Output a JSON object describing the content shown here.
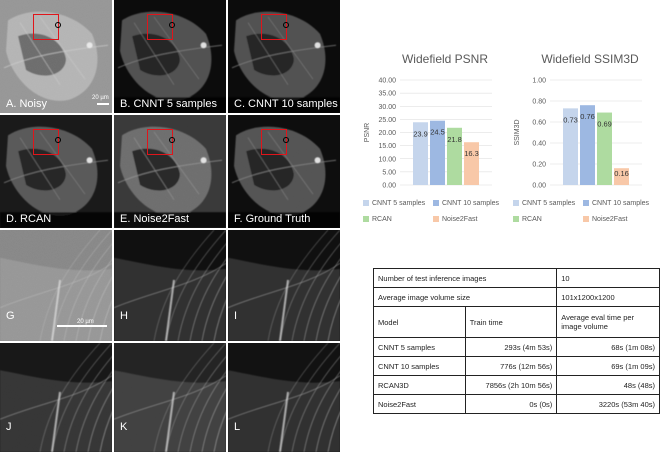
{
  "panels": [
    {
      "id": "A",
      "label": "A. Noisy",
      "style": "noisy",
      "has_box": true,
      "scalebar": "20 µm"
    },
    {
      "id": "B",
      "label": "B. CNNT 5 samples",
      "style": "clean",
      "has_box": true
    },
    {
      "id": "C",
      "label": "C. CNNT 10 samples",
      "style": "clean",
      "has_box": true
    },
    {
      "id": "D",
      "label": "D. RCAN",
      "style": "rcan",
      "has_box": true
    },
    {
      "id": "E",
      "label": "E. Noise2Fast",
      "style": "n2f",
      "has_box": true
    },
    {
      "id": "F",
      "label": "F. Ground Truth",
      "style": "gt",
      "has_box": true
    },
    {
      "id": "G",
      "label": "G",
      "style": "zoom-noisy",
      "scalebar": "20 µm"
    },
    {
      "id": "H",
      "label": "H",
      "style": "zoom-clean"
    },
    {
      "id": "I",
      "label": "I",
      "style": "zoom-clean"
    },
    {
      "id": "J",
      "label": "J",
      "style": "zoom-rcan"
    },
    {
      "id": "K",
      "label": "K",
      "style": "zoom-n2f"
    },
    {
      "id": "L",
      "label": "L",
      "style": "zoom-gt"
    }
  ],
  "colors": {
    "cnnt5": "#c5d5ec",
    "cnnt10": "#9db8e2",
    "rcan": "#aedba0",
    "n2f": "#f8c8a8",
    "red_box": "#e0151b"
  },
  "chart_data": [
    {
      "type": "bar",
      "title": "Widefield PSNR",
      "ylabel": "PSNR",
      "xlabel": "",
      "ylim": [
        0,
        40
      ],
      "yticks": [
        "0.00",
        "5.00",
        "10.00",
        "15.00",
        "20.00",
        "25.00",
        "30.00",
        "35.00",
        "40.00"
      ],
      "series": [
        {
          "name": "CNNT 5 samples",
          "values": [
            23.9
          ],
          "label": "23.9"
        },
        {
          "name": "CNNT 10 samples",
          "values": [
            24.5
          ],
          "label": "24.5"
        },
        {
          "name": "RCAN",
          "values": [
            21.8
          ],
          "label": "21.8"
        },
        {
          "name": "Noise2Fast",
          "values": [
            16.3
          ],
          "label": "16.3"
        }
      ],
      "grid": true,
      "legend": "bottom"
    },
    {
      "type": "bar",
      "title": "Widefield SSIM3D",
      "ylabel": "SSIM3D",
      "xlabel": "",
      "ylim": [
        0,
        1
      ],
      "yticks": [
        "0.00",
        "0.20",
        "0.40",
        "0.60",
        "0.80",
        "1.00"
      ],
      "series": [
        {
          "name": "CNNT 5 samples",
          "values": [
            0.73
          ],
          "label": "0.73"
        },
        {
          "name": "CNNT 10 samples",
          "values": [
            0.76
          ],
          "label": "0.76"
        },
        {
          "name": "RCAN",
          "values": [
            0.69
          ],
          "label": "0.69"
        },
        {
          "name": "Noise2Fast",
          "values": [
            0.16
          ],
          "label": "0.16"
        }
      ],
      "grid": true,
      "legend": "bottom"
    }
  ],
  "table": {
    "rows": [
      {
        "cells": [
          "Number of test inference images",
          "10"
        ],
        "spans": [
          2,
          1
        ]
      },
      {
        "cells": [
          "Average image volume size",
          "101x1200x1200"
        ],
        "spans": [
          2,
          1
        ]
      },
      {
        "cells": [
          "Model",
          "Train time",
          "Average eval time per image volume"
        ],
        "spans": [
          1,
          1,
          1
        ]
      },
      {
        "cells": [
          "CNNT 5 samples",
          "293s (4m 53s)",
          "68s (1m 08s)"
        ],
        "spans": [
          1,
          1,
          1
        ]
      },
      {
        "cells": [
          "CNNT 10 samples",
          "776s (12m 56s)",
          "69s (1m 09s)"
        ],
        "spans": [
          1,
          1,
          1
        ]
      },
      {
        "cells": [
          "RCAN3D",
          "7856s (2h 10m 56s)",
          "48s (48s)"
        ],
        "spans": [
          1,
          1,
          1
        ]
      },
      {
        "cells": [
          "Noise2Fast",
          "0s (0s)",
          "3220s (53m 40s)"
        ],
        "spans": [
          1,
          1,
          1
        ]
      }
    ]
  }
}
